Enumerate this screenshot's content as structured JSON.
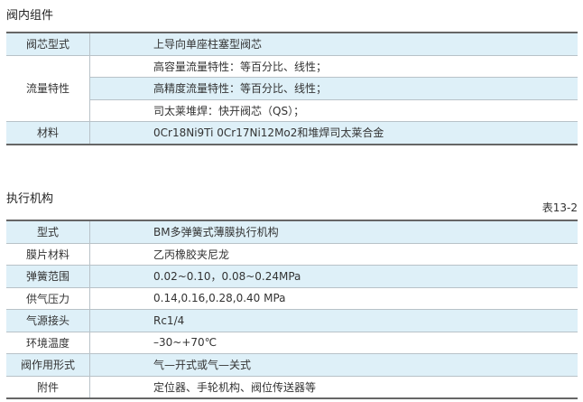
{
  "section1": {
    "title": "阀内组件",
    "rows": [
      {
        "key": "阀芯型式",
        "values": [
          "上导向单座柱塞型阀芯"
        ]
      },
      {
        "key": "流量特性",
        "values": [
          "高容量流量特性：等百分比、线性；",
          "高精度流量特性：等百分比、线性；",
          "司太莱堆焊：快开阀芯（QS）；"
        ]
      },
      {
        "key": "材料",
        "values": [
          "0Cr18Ni9Ti  0Cr17Ni12Mo2和堆焊司太莱合金"
        ]
      }
    ]
  },
  "section2": {
    "title": "执行机构",
    "table_no": "表13-2",
    "rows": [
      {
        "key": "型式",
        "value": "BM多弹簧式薄膜执行机构"
      },
      {
        "key": "膜片材料",
        "value": "乙丙橡胶夹尼龙"
      },
      {
        "key": "弹簧范围",
        "value": "0.02~0.10，0.08~0.24MPa"
      },
      {
        "key": "供气压力",
        "value": "0.14,0.16,0.28,0.40 MPa"
      },
      {
        "key": "气源接头",
        "value": "Rc1/4"
      },
      {
        "key": "环境温度",
        "value": "–30~+70℃"
      },
      {
        "key": "阀作用形式",
        "value": "气—开式或气—关式"
      },
      {
        "key": "附件",
        "value": "定位器、手轮机构、阀位传送器等"
      }
    ]
  },
  "colors": {
    "row_highlight": "#def0f8",
    "border": "#666666"
  }
}
